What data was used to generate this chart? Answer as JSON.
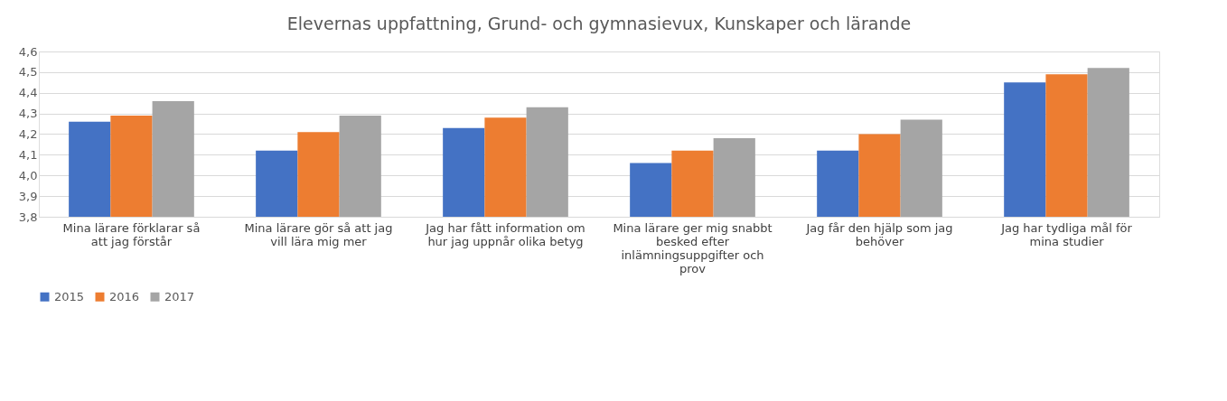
{
  "chart_data": {
    "type": "bar",
    "title": "Elevernas uppfattning, Grund- och gymnasievux, Kunskaper och lärande",
    "categories": [
      "Mina lärare förklarar så att jag förstår",
      "Mina lärare gör så att jag vill lära mig mer",
      "Jag har fått information om hur jag uppnår olika betyg",
      "Mina lärare ger mig snabbt besked efter inlämningsuppgifter och prov",
      "Jag får den hjälp som jag behöver",
      "Jag har tydliga mål för mina studier"
    ],
    "series": [
      {
        "name": "2015",
        "color": "#4472c4",
        "values": [
          4.26,
          4.12,
          4.23,
          4.06,
          4.12,
          4.45
        ]
      },
      {
        "name": "2016",
        "color": "#ed7d31",
        "values": [
          4.29,
          4.21,
          4.28,
          4.12,
          4.2,
          4.49
        ]
      },
      {
        "name": "2017",
        "color": "#a5a5a5",
        "values": [
          4.36,
          4.29,
          4.33,
          4.18,
          4.27,
          4.52
        ]
      }
    ],
    "ylim": [
      3.8,
      4.6
    ],
    "yticks": [
      {
        "value": 3.8,
        "label": "3,8"
      },
      {
        "value": 3.9,
        "label": "3,9"
      },
      {
        "value": 4.0,
        "label": "4,0"
      },
      {
        "value": 4.1,
        "label": "4,1"
      },
      {
        "value": 4.2,
        "label": "4,2"
      },
      {
        "value": 4.3,
        "label": "4,3"
      },
      {
        "value": 4.4,
        "label": "4,4"
      },
      {
        "value": 4.5,
        "label": "4,5"
      },
      {
        "value": 4.6,
        "label": "4,6"
      }
    ],
    "grid": "y",
    "legend": "bottom"
  }
}
